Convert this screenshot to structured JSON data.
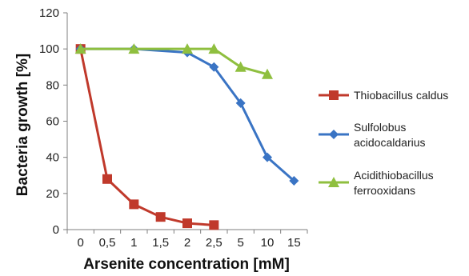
{
  "chart_data": {
    "type": "line",
    "title": "",
    "xlabel": "Arsenite concentration [mM]",
    "ylabel": "Bacteria growth [%]",
    "categories": [
      "0",
      "0,5",
      "1",
      "1,5",
      "2",
      "2,5",
      "5",
      "10",
      "15"
    ],
    "ylim": [
      0,
      120
    ],
    "yticks": [
      0,
      20,
      40,
      60,
      80,
      100,
      120
    ],
    "grid": "none",
    "legend_position": "right",
    "series": [
      {
        "name": "Thiobacillus caldus",
        "color": "#c0392b",
        "marker": "square",
        "points": [
          {
            "x": "0",
            "y": 100
          },
          {
            "x": "0,5",
            "y": 28
          },
          {
            "x": "1",
            "y": 14
          },
          {
            "x": "1,5",
            "y": 7
          },
          {
            "x": "2",
            "y": 3.5
          },
          {
            "x": "2,5",
            "y": 2.5
          }
        ]
      },
      {
        "name": "Sulfolobus acidocaldarius",
        "color": "#3a74c4",
        "marker": "diamond",
        "points": [
          {
            "x": "0",
            "y": 100
          },
          {
            "x": "1",
            "y": 100
          },
          {
            "x": "2",
            "y": 98
          },
          {
            "x": "2,5",
            "y": 90
          },
          {
            "x": "5",
            "y": 70
          },
          {
            "x": "10",
            "y": 40
          },
          {
            "x": "15",
            "y": 27
          }
        ]
      },
      {
        "name": "Acidithiobacillus ferrooxidans",
        "color": "#8fbf3f",
        "marker": "triangle",
        "points": [
          {
            "x": "0",
            "y": 100
          },
          {
            "x": "1",
            "y": 100
          },
          {
            "x": "2",
            "y": 100
          },
          {
            "x": "2,5",
            "y": 100
          },
          {
            "x": "5",
            "y": 90
          },
          {
            "x": "10",
            "y": 86
          }
        ]
      }
    ],
    "legend_labels": [
      [
        "Thiobacillus caldus"
      ],
      [
        "Sulfolobus",
        "acidocaldarius"
      ],
      [
        "Acidithiobacillus",
        "ferrooxidans"
      ]
    ]
  }
}
